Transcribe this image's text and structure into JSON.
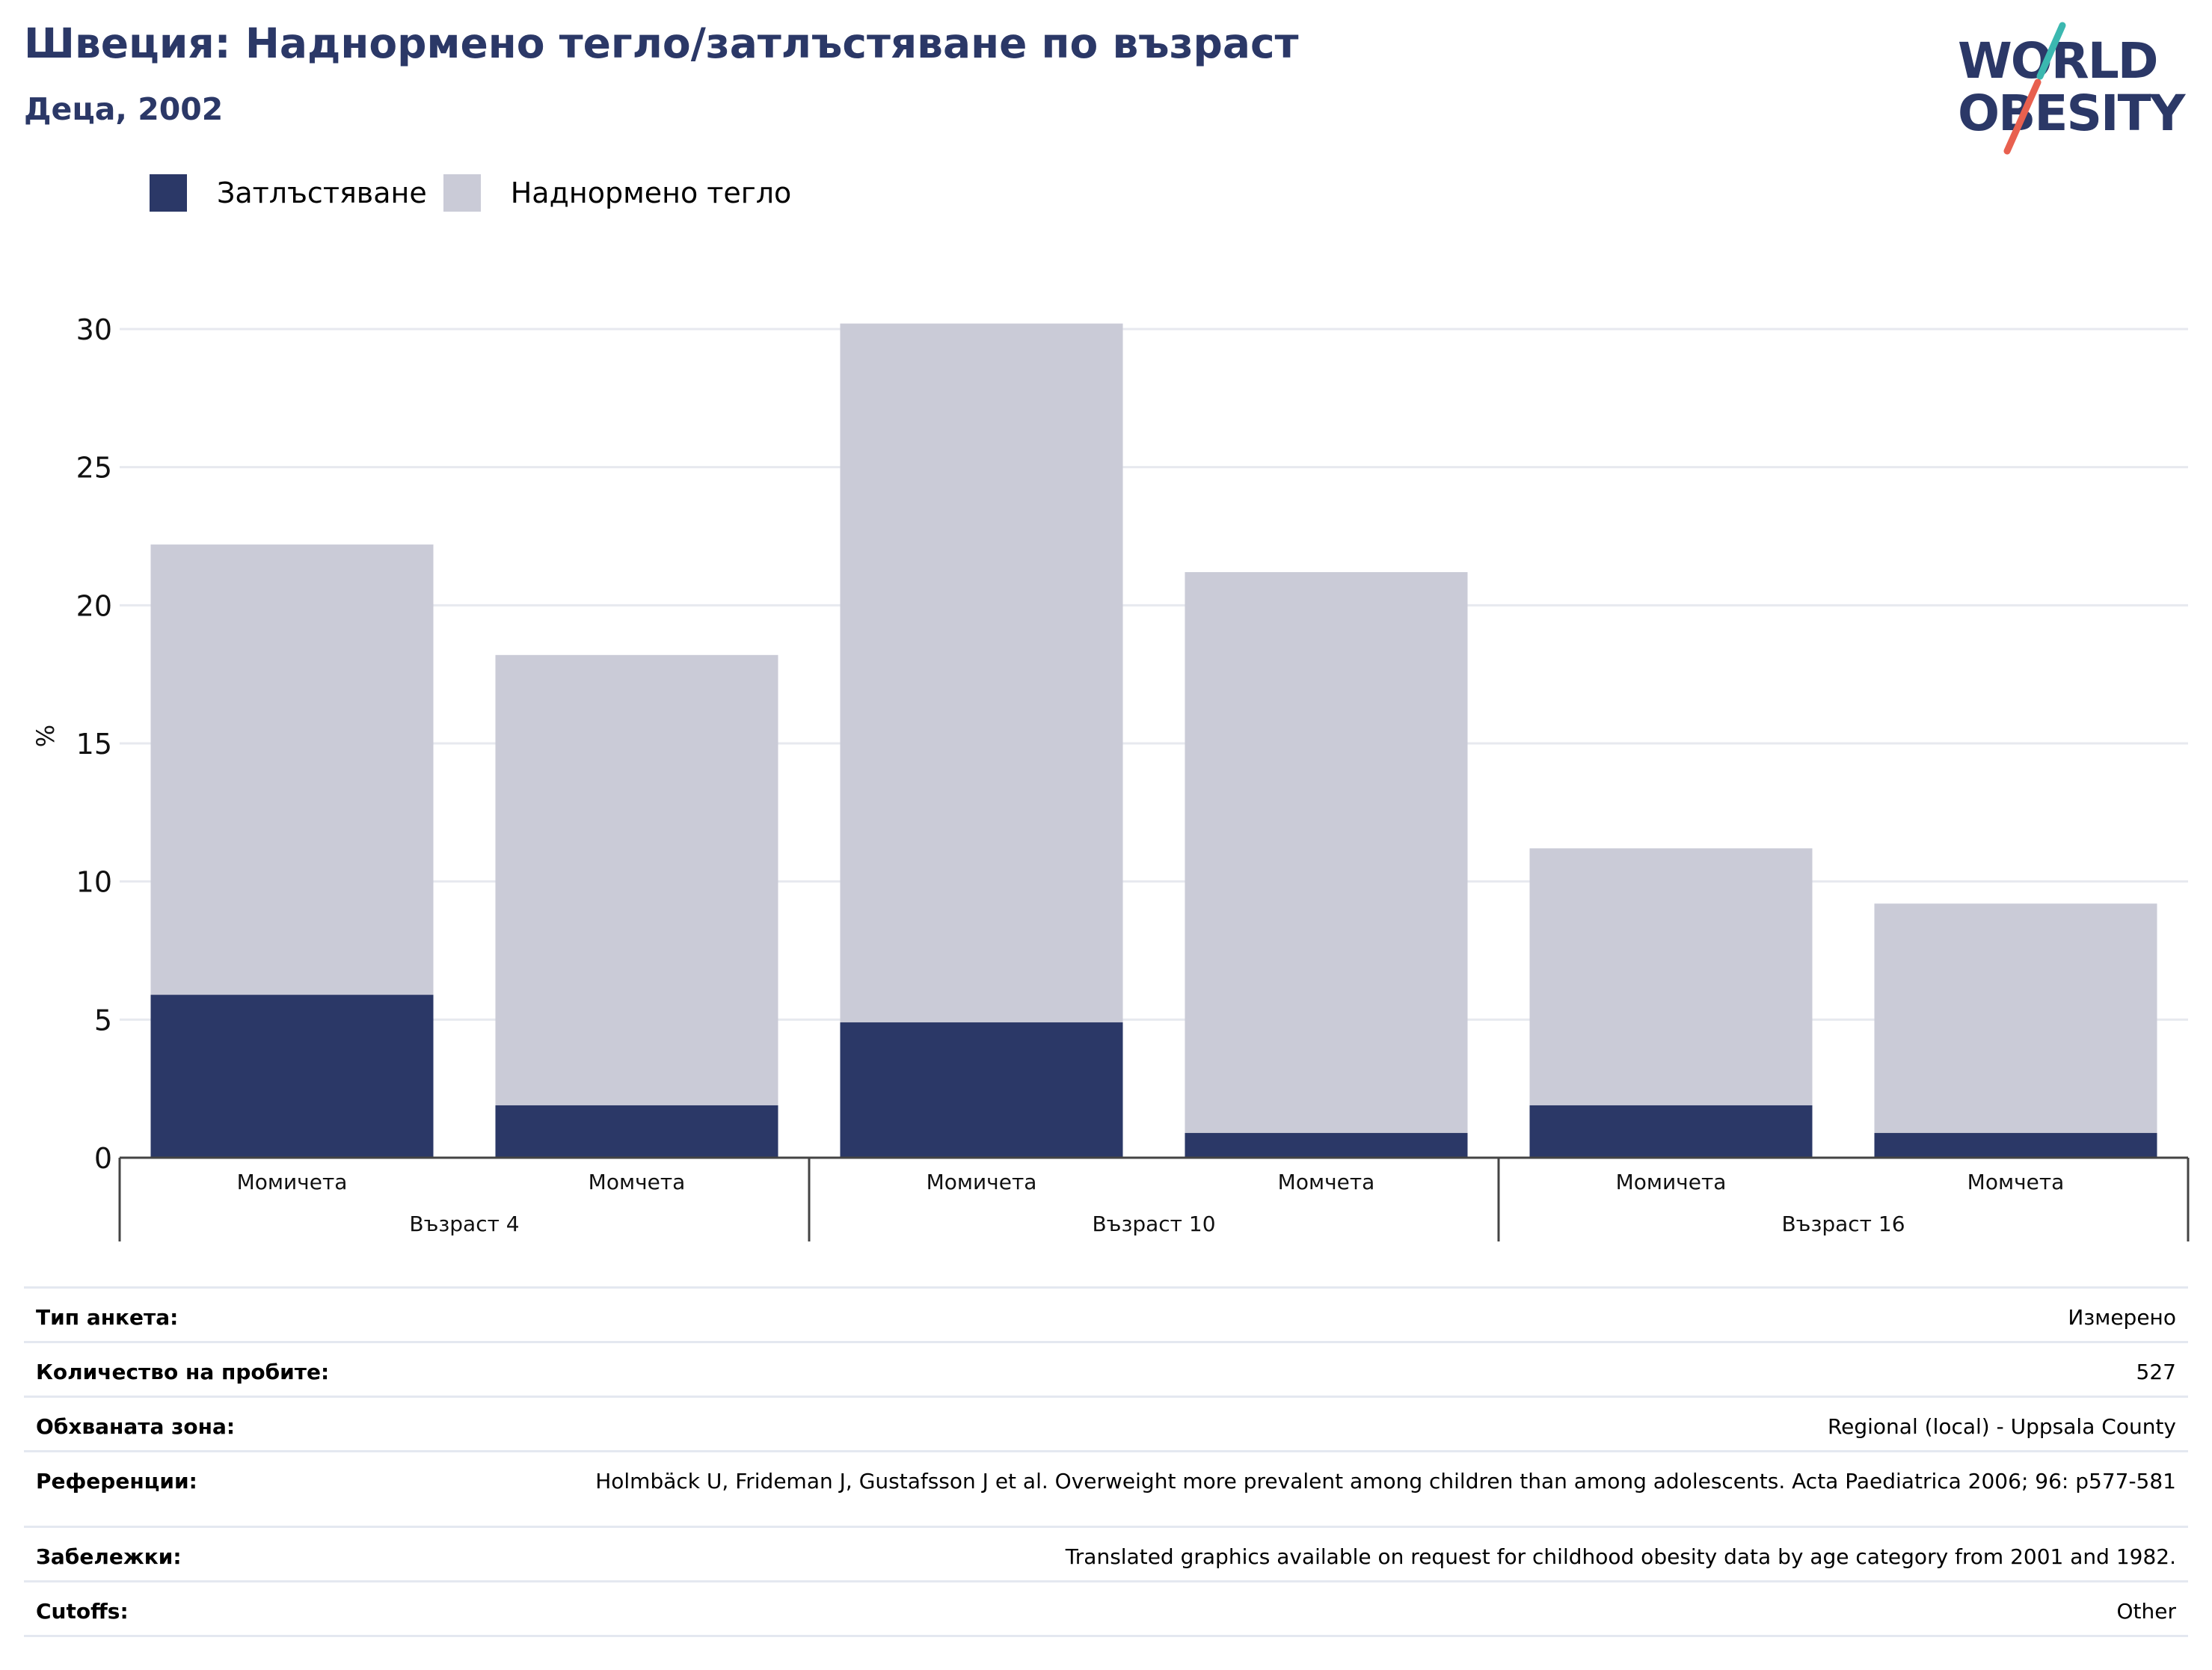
{
  "header": {
    "title": "Швеция: Наднормено тегло/затлъстяване по възраст",
    "subtitle": "Деца, 2002"
  },
  "logo": {
    "line1": "WORLD",
    "line2": "OBESITY",
    "colors": {
      "text": "#2b3867",
      "slash_top": "#3bb8b0",
      "slash_bottom": "#e8604f"
    }
  },
  "legend": {
    "items": [
      {
        "label": "Затлъстяване",
        "color": "#2b3867"
      },
      {
        "label": "Наднормено тегло",
        "color": "#cacbd7"
      }
    ]
  },
  "chart_data": {
    "type": "bar",
    "stacked": true,
    "ylabel": "%",
    "xlabel": "",
    "ylim": [
      0,
      30
    ],
    "yticks": [
      0,
      5,
      10,
      15,
      20,
      25,
      30
    ],
    "grid": true,
    "legend_position": "top-left",
    "groups": [
      {
        "label": "Възраст 4",
        "categories": [
          "Момичета",
          "Момчета"
        ]
      },
      {
        "label": "Възраст 10",
        "categories": [
          "Момичета",
          "Момчета"
        ]
      },
      {
        "label": "Възраст 16",
        "categories": [
          "Момичета",
          "Момчета"
        ]
      }
    ],
    "categories": [
      "Момичета",
      "Момчета",
      "Момичета",
      "Момчета",
      "Момичета",
      "Момчета"
    ],
    "series": [
      {
        "name": "Затлъстяване",
        "color": "#2b3867",
        "values": [
          5.9,
          1.9,
          4.9,
          0.9,
          1.9,
          0.9
        ]
      },
      {
        "name": "Наднормено тегло",
        "color": "#cacbd7",
        "values": [
          16.3,
          16.3,
          25.3,
          20.3,
          9.3,
          8.3
        ]
      }
    ],
    "totals": [
      22.2,
      18.2,
      30.2,
      21.2,
      11.2,
      9.2
    ]
  },
  "info": {
    "rows": [
      {
        "key": "Тип анкета:",
        "value": "Измерено"
      },
      {
        "key": "Количество на пробите:",
        "value": "527"
      },
      {
        "key": "Обхваната зона:",
        "value": "Regional (local) - Uppsala County"
      },
      {
        "key": "Референции:",
        "value": "Holmbäck U, Frideman J, Gustafsson J et al. Overweight more prevalent among children than among adolescents. Acta Paediatrica 2006; 96: p577-581"
      },
      {
        "key": "Забележки:",
        "value": "Translated graphics available on request for childhood obesity data by age category from 2001 and 1982."
      },
      {
        "key": "Cutoffs:",
        "value": "Other"
      }
    ]
  }
}
